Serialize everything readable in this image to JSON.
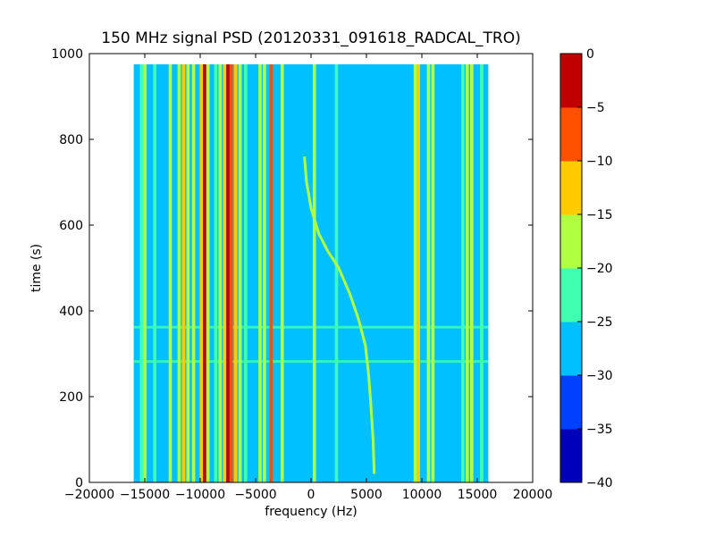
{
  "chart_data": {
    "type": "heatmap",
    "title": "150 MHz signal PSD (20120331_091618_RADCAL_TRO)",
    "xlabel": "frequency (Hz)",
    "ylabel": "time (s)",
    "xlim": [
      -20000,
      20000
    ],
    "ylim": [
      0,
      1000
    ],
    "x_ticks": [
      -20000,
      -15000,
      -10000,
      -5000,
      0,
      5000,
      10000,
      15000,
      20000
    ],
    "y_ticks": [
      0,
      200,
      400,
      600,
      800,
      1000
    ],
    "data_extent": {
      "x": [
        -16000,
        16000
      ],
      "y": [
        0,
        975
      ]
    },
    "background_level": -27.5,
    "colorbar": {
      "levels": [
        -40,
        -35,
        -30,
        -25,
        -20,
        -15,
        -10,
        -5,
        0
      ],
      "colors": [
        "#0000b8",
        "#0040ff",
        "#00c0ff",
        "#40ffb0",
        "#b0ff40",
        "#ffcc00",
        "#ff5000",
        "#c00000"
      ],
      "ticks": [
        -40,
        -35,
        -30,
        -25,
        -20,
        -15,
        -10,
        -5,
        0
      ]
    },
    "vertical_lines": [
      {
        "x": -15300,
        "level": -22.5
      },
      {
        "x": -15000,
        "level": -17.5
      },
      {
        "x": -14100,
        "level": -22.5
      },
      {
        "x": -12700,
        "level": -17.5
      },
      {
        "x": -11900,
        "level": -17.5
      },
      {
        "x": -11500,
        "level": -12.5
      },
      {
        "x": -11100,
        "level": -17.5
      },
      {
        "x": -10600,
        "level": -17.5
      },
      {
        "x": -9900,
        "level": -12.5
      },
      {
        "x": -9600,
        "level": -2.5
      },
      {
        "x": -9300,
        "level": -17.5
      },
      {
        "x": -8600,
        "level": -22.5
      },
      {
        "x": -8200,
        "level": -17.5
      },
      {
        "x": -7800,
        "level": -12.5
      },
      {
        "x": -7500,
        "level": -2.5
      },
      {
        "x": -7200,
        "level": -7.5
      },
      {
        "x": -6800,
        "level": -12.5
      },
      {
        "x": -6400,
        "level": -17.5
      },
      {
        "x": -5900,
        "level": -22.5
      },
      {
        "x": -4600,
        "level": -17.5
      },
      {
        "x": -4200,
        "level": -17.5
      },
      {
        "x": -3600,
        "level": -7.5
      },
      {
        "x": -2600,
        "level": -17.5
      },
      {
        "x": 300,
        "level": -17.5
      },
      {
        "x": 2300,
        "level": -22.5
      },
      {
        "x": 9400,
        "level": -17.5
      },
      {
        "x": 9700,
        "level": -12.5
      },
      {
        "x": 10600,
        "level": -17.5
      },
      {
        "x": 11000,
        "level": -17.5
      },
      {
        "x": 13700,
        "level": -22.5
      },
      {
        "x": 14100,
        "level": -17.5
      },
      {
        "x": 14500,
        "level": -17.5
      },
      {
        "x": 15400,
        "level": -22.5
      }
    ],
    "doppler_trace": {
      "level": -17.5,
      "points": [
        {
          "x": -600,
          "y": 760
        },
        {
          "x": -400,
          "y": 700
        },
        {
          "x": 0,
          "y": 640
        },
        {
          "x": 700,
          "y": 580
        },
        {
          "x": 1500,
          "y": 540
        },
        {
          "x": 2500,
          "y": 500
        },
        {
          "x": 3500,
          "y": 440
        },
        {
          "x": 4300,
          "y": 380
        },
        {
          "x": 4900,
          "y": 320
        },
        {
          "x": 5200,
          "y": 250
        },
        {
          "x": 5400,
          "y": 180
        },
        {
          "x": 5600,
          "y": 100
        },
        {
          "x": 5700,
          "y": 20
        }
      ]
    },
    "horizontal_bands": [
      {
        "y": 282,
        "level": -22.5
      },
      {
        "y": 362,
        "level": -22.5
      }
    ]
  }
}
